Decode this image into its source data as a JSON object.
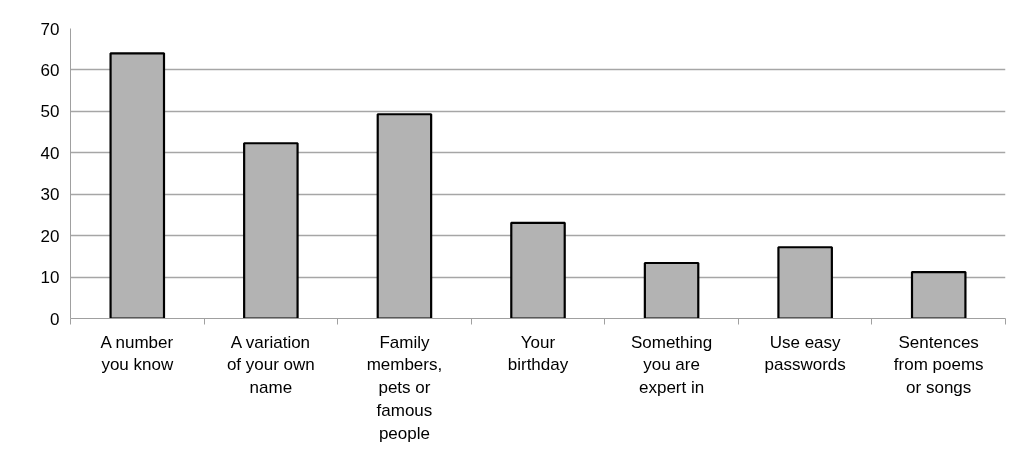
{
  "chart_data": {
    "type": "bar",
    "categories": [
      "A number you know",
      "A variation of your own name",
      "Family members, pets or famous people",
      "Your birthday",
      "Something you are expert in",
      "Use easy passwords",
      "Sentences from poems or songs"
    ],
    "values": [
      64,
      42.3,
      49.3,
      23.1,
      13.4,
      17.2,
      11.2
    ],
    "color": "#b3b3b3",
    "ylim": [
      0,
      70
    ],
    "yticks": [
      0,
      10,
      20,
      30,
      40,
      50,
      60,
      70
    ],
    "grid": "y"
  }
}
